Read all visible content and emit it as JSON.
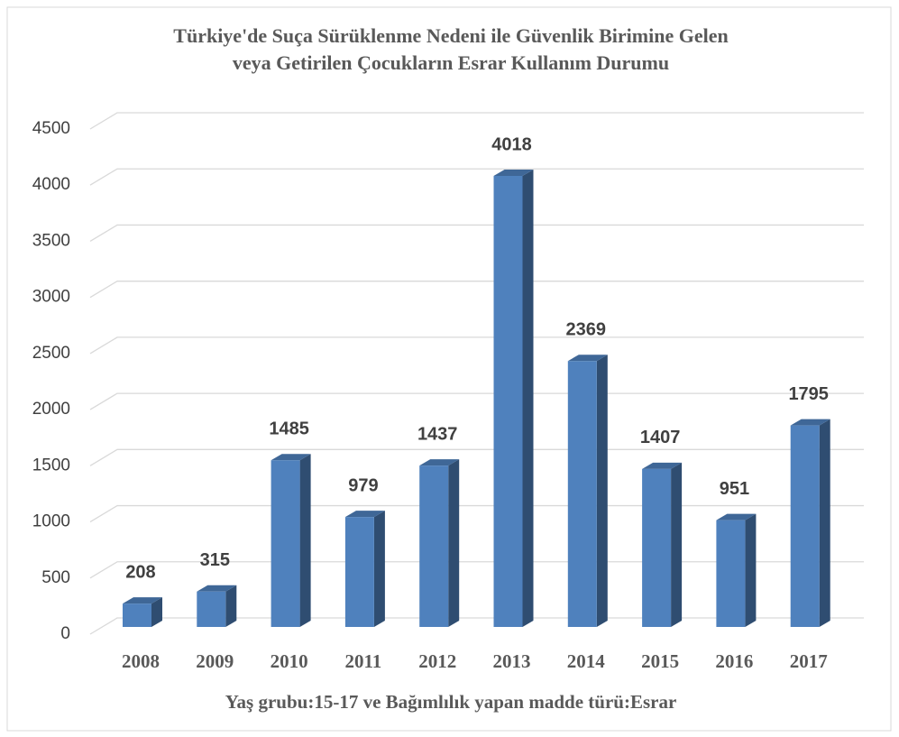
{
  "chart_data": {
    "type": "bar3d",
    "title": [
      "Türkiye'de Suça Sürüklenme Nedeni ile Güvenlik Birimine Gelen",
      "veya Getirilen Çocukların Esrar Kullanım Durumu"
    ],
    "x_label": "Yaş grubu:15-17 ve Bağımlılık yapan madde türü:Esrar",
    "categories": [
      "2008",
      "2009",
      "2010",
      "2011",
      "2012",
      "2013",
      "2014",
      "2015",
      "2016",
      "2017"
    ],
    "values": [
      208,
      315,
      1485,
      979,
      1437,
      4018,
      2369,
      1407,
      951,
      1795
    ],
    "color": "#4f81bd",
    "ylim": [
      0,
      4500
    ],
    "yticks": [
      0,
      500,
      1000,
      1500,
      2000,
      2500,
      3000,
      3500,
      4000,
      4500
    ],
    "grid": true
  }
}
